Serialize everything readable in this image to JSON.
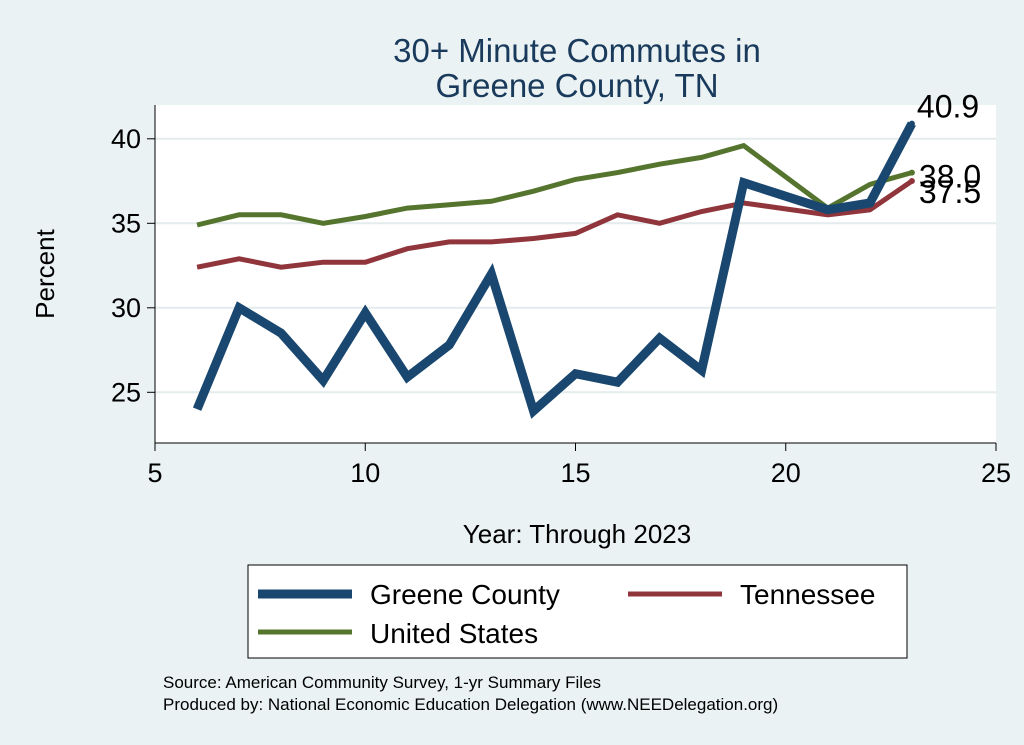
{
  "chart_data": {
    "type": "line",
    "title": [
      "30+ Minute Commutes in",
      "Greene County, TN"
    ],
    "xlabel": "Year: Through 2023",
    "ylabel": "Percent",
    "xlim": [
      5,
      25
    ],
    "ylim": [
      22,
      42
    ],
    "xticks": [
      5,
      10,
      15,
      20,
      25
    ],
    "yticks": [
      25,
      30,
      35,
      40
    ],
    "grid": true,
    "series": [
      {
        "name": "Greene County",
        "color": "#1a476f",
        "x": [
          6,
          7,
          8,
          9,
          10,
          11,
          12,
          13,
          14,
          15,
          16,
          17,
          18,
          19,
          21,
          22,
          23
        ],
        "values": [
          24.0,
          30.0,
          28.5,
          25.7,
          29.7,
          25.9,
          27.8,
          32.0,
          23.9,
          26.1,
          25.6,
          28.2,
          26.3,
          37.4,
          35.8,
          36.2,
          40.9
        ],
        "end_label": "40.9"
      },
      {
        "name": "Tennessee",
        "color": "#90353b",
        "x": [
          6,
          7,
          8,
          9,
          10,
          11,
          12,
          13,
          14,
          15,
          16,
          17,
          18,
          19,
          21,
          22,
          23
        ],
        "values": [
          32.4,
          32.9,
          32.4,
          32.7,
          32.7,
          33.5,
          33.9,
          33.9,
          34.1,
          34.4,
          35.5,
          35.0,
          35.7,
          36.2,
          35.5,
          35.8,
          37.5
        ],
        "end_label": "37.5"
      },
      {
        "name": "United States",
        "color": "#55752f",
        "x": [
          6,
          7,
          8,
          9,
          10,
          11,
          12,
          13,
          14,
          15,
          16,
          17,
          18,
          19,
          21,
          22,
          23
        ],
        "values": [
          34.9,
          35.5,
          35.5,
          35.0,
          35.4,
          35.9,
          36.1,
          36.3,
          36.9,
          37.6,
          38.0,
          38.5,
          38.9,
          39.6,
          35.9,
          37.3,
          38.0
        ],
        "end_label": "38.0"
      }
    ],
    "legend": {
      "position": "bottom",
      "entries": [
        "Greene County",
        "Tennessee",
        "United States"
      ]
    }
  },
  "source_note": "Source: American Community Survey, 1-yr Summary Files",
  "producer_note": "Produced by: National Economic Education Delegation (www.NEEDelegation.org)"
}
